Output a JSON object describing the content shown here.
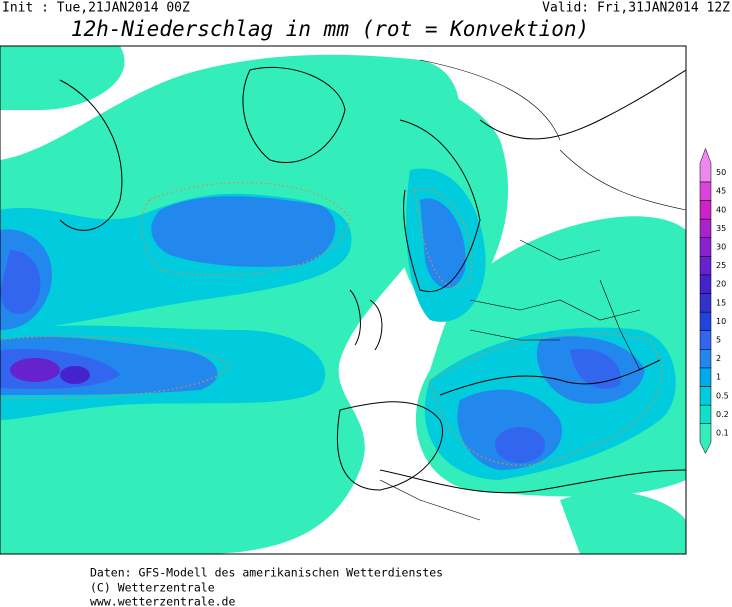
{
  "header": {
    "init": "Init : Tue,21JAN2014 00Z",
    "valid": "Valid: Fri,31JAN2014 12Z",
    "title": "12h-Niederschlag in mm (rot = Konvektion)"
  },
  "legend": {
    "levels": [
      {
        "value": 0.1,
        "color": "#33eebb"
      },
      {
        "value": 0.2,
        "color": "#11e0c8"
      },
      {
        "value": 0.5,
        "color": "#00ccdd"
      },
      {
        "value": 1,
        "color": "#00aaee"
      },
      {
        "value": 2,
        "color": "#2288ee"
      },
      {
        "value": 5,
        "color": "#3366ee"
      },
      {
        "value": 10,
        "color": "#2244dd"
      },
      {
        "value": 15,
        "color": "#3333cc"
      },
      {
        "value": 20,
        "color": "#4422cc"
      },
      {
        "value": 25,
        "color": "#6622cc"
      },
      {
        "value": 30,
        "color": "#8822cc"
      },
      {
        "value": 35,
        "color": "#aa22cc"
      },
      {
        "value": 40,
        "color": "#cc22cc"
      },
      {
        "value": 45,
        "color": "#dd44dd"
      },
      {
        "value": 50,
        "color": "#ee88ee"
      }
    ]
  },
  "footer": {
    "lines": [
      "Daten: GFS-Modell des amerikanischen Wetterdienstes",
      "(C) Wetterzentrale",
      "www.wetterzentrale.de"
    ]
  }
}
